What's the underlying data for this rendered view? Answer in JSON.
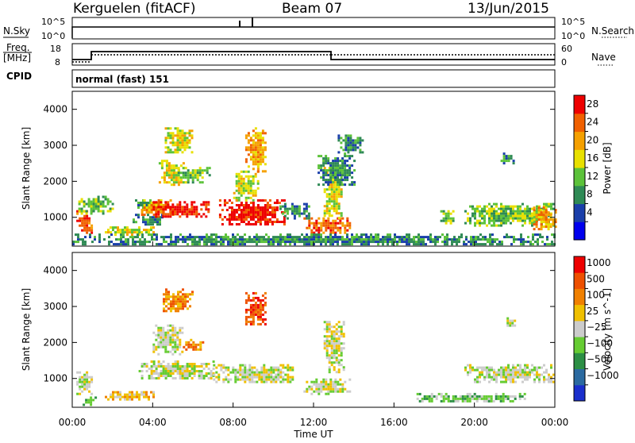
{
  "header": {
    "station": "Kerguelen (fitACF)",
    "beam": "Beam 07",
    "date": "13/Jun/2015"
  },
  "noise_panel": {
    "left_label": "N.Sky",
    "left_ticks": [
      "10^5",
      "10^0"
    ],
    "right_label": "N.Search",
    "right_ticks": [
      "10^5",
      "10^0"
    ]
  },
  "freq_panel": {
    "left_label_1": "Freq.",
    "left_label_2": "[MHz]",
    "left_ticks": [
      "18",
      "8"
    ],
    "right_label": "Nave",
    "right_ticks": [
      "60",
      "0"
    ]
  },
  "cpid": {
    "label": "CPID",
    "mode": "normal (fast) 151"
  },
  "x_axis": {
    "ticks": [
      "00:00",
      "04:00",
      "08:00",
      "12:00",
      "16:00",
      "20:00",
      "00:00"
    ],
    "label": "Time UT"
  },
  "chart_data": [
    {
      "type": "heatmap",
      "name": "power",
      "ylabel": "Slant Range [km]",
      "yticks": [
        1000,
        2000,
        3000,
        4000
      ],
      "ylim": [
        200,
        4500
      ],
      "xlim_hours": [
        0,
        24
      ],
      "colorbar": {
        "label": "Power [dB]",
        "ticks": [
          "28",
          "24",
          "20",
          "16",
          "12",
          "8",
          "4"
        ],
        "colors": [
          "#0000ee",
          "#1a3faa",
          "#2f8a55",
          "#5cc23a",
          "#e8e000",
          "#f5a000",
          "#f06000",
          "#ee0000"
        ]
      },
      "regions": [
        {
          "t0": 0.2,
          "t1": 1.0,
          "r0": 600,
          "r1": 1200,
          "level": 6
        },
        {
          "t0": 0.3,
          "t1": 2.0,
          "r0": 1100,
          "r1": 1600,
          "level": 3
        },
        {
          "t0": 1.5,
          "t1": 4.0,
          "r0": 550,
          "r1": 750,
          "level": 4
        },
        {
          "t0": 3.0,
          "t1": 4.5,
          "r0": 800,
          "r1": 1100,
          "level": 2
        },
        {
          "t0": 3.0,
          "t1": 4.3,
          "r0": 1250,
          "r1": 1500,
          "level": 2
        },
        {
          "t0": 3.3,
          "t1": 5.0,
          "r0": 1100,
          "r1": 1500,
          "level": 5
        },
        {
          "t0": 4.0,
          "t1": 6.8,
          "r0": 1000,
          "r1": 1450,
          "level": 7
        },
        {
          "t0": 4.3,
          "t1": 5.5,
          "r0": 1900,
          "r1": 2600,
          "level": 4
        },
        {
          "t0": 5.0,
          "t1": 6.8,
          "r0": 2000,
          "r1": 2400,
          "level": 3
        },
        {
          "t0": 4.6,
          "t1": 6.0,
          "r0": 2800,
          "r1": 3500,
          "level": 4
        },
        {
          "t0": 7.3,
          "t1": 10.5,
          "r0": 800,
          "r1": 1500,
          "level": 7
        },
        {
          "t0": 8.0,
          "t1": 9.2,
          "r0": 1500,
          "r1": 2300,
          "level": 4
        },
        {
          "t0": 8.6,
          "t1": 9.6,
          "r0": 2300,
          "r1": 3500,
          "level": 5
        },
        {
          "t0": 10.3,
          "t1": 11.8,
          "r0": 1000,
          "r1": 1400,
          "level": 2
        },
        {
          "t0": 11.5,
          "t1": 13.8,
          "r0": 600,
          "r1": 1000,
          "level": 6
        },
        {
          "t0": 12.5,
          "t1": 13.4,
          "r0": 1000,
          "r1": 2400,
          "level": 4
        },
        {
          "t0": 12.2,
          "t1": 14.0,
          "r0": 1900,
          "r1": 2800,
          "level": 2
        },
        {
          "t0": 13.2,
          "t1": 14.5,
          "r0": 2800,
          "r1": 3300,
          "level": 2
        },
        {
          "t0": 18.3,
          "t1": 18.9,
          "r0": 850,
          "r1": 1200,
          "level": 3
        },
        {
          "t0": 19.5,
          "t1": 24.0,
          "r0": 800,
          "r1": 1400,
          "level": 3
        },
        {
          "t0": 22.8,
          "t1": 24.0,
          "r0": 700,
          "r1": 1300,
          "level": 5
        },
        {
          "t0": 21.3,
          "t1": 21.9,
          "r0": 2500,
          "r1": 2800,
          "level": 2
        },
        {
          "t0": 0.0,
          "t1": 24.0,
          "r0": 250,
          "r1": 550,
          "level": 2
        }
      ]
    },
    {
      "type": "heatmap",
      "name": "velocity",
      "ylabel": "Slant Range [km]",
      "yticks": [
        1000,
        2000,
        3000,
        4000
      ],
      "ylim": [
        200,
        4500
      ],
      "xlim_hours": [
        0,
        24
      ],
      "colorbar": {
        "label": "Velocity [m s^-1]",
        "ticks": [
          "1000",
          "500",
          "100",
          "25",
          "−25",
          "−100",
          "−500",
          "−1000"
        ],
        "colors": [
          "#1a2fcc",
          "#2b6aa0",
          "#2c8f45",
          "#66cc33",
          "#cccccc",
          "#f0c000",
          "#f08000",
          "#ee5000",
          "#ee0000"
        ]
      },
      "regions": [
        {
          "t0": 0.2,
          "t1": 1.0,
          "r0": 600,
          "r1": 1200,
          "level": 4
        },
        {
          "t0": 0.4,
          "t1": 1.2,
          "r0": 300,
          "r1": 500,
          "level": 3
        },
        {
          "t0": 1.5,
          "t1": 4.0,
          "r0": 400,
          "r1": 650,
          "level": 5
        },
        {
          "t0": 3.3,
          "t1": 7.0,
          "r0": 1000,
          "r1": 1500,
          "level": 4
        },
        {
          "t0": 4.0,
          "t1": 5.5,
          "r0": 1700,
          "r1": 2500,
          "level": 4
        },
        {
          "t0": 4.5,
          "t1": 6.0,
          "r0": 2900,
          "r1": 3500,
          "level": 6
        },
        {
          "t0": 5.5,
          "t1": 6.5,
          "r0": 1800,
          "r1": 2100,
          "level": 6
        },
        {
          "t0": 7.0,
          "t1": 11.0,
          "r0": 900,
          "r1": 1400,
          "level": 4
        },
        {
          "t0": 8.6,
          "t1": 9.6,
          "r0": 2500,
          "r1": 3400,
          "level": 7
        },
        {
          "t0": 11.5,
          "t1": 13.8,
          "r0": 600,
          "r1": 1000,
          "level": 4
        },
        {
          "t0": 12.5,
          "t1": 13.5,
          "r0": 1200,
          "r1": 2600,
          "level": 4
        },
        {
          "t0": 17.0,
          "t1": 22.5,
          "r0": 350,
          "r1": 600,
          "level": 3
        },
        {
          "t0": 19.5,
          "t1": 24.0,
          "r0": 900,
          "r1": 1400,
          "level": 4
        },
        {
          "t0": 21.6,
          "t1": 22.0,
          "r0": 2500,
          "r1": 2700,
          "level": 4
        }
      ]
    }
  ]
}
